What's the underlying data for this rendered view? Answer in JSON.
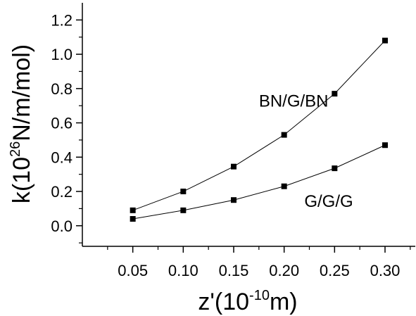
{
  "chart_data": {
    "type": "line",
    "x_ticks": [
      "0.05",
      "0.10",
      "0.15",
      "0.20",
      "0.25",
      "0.30"
    ],
    "y_ticks": [
      "0.0",
      "0.2",
      "0.4",
      "0.6",
      "0.8",
      "1.0",
      "1.2"
    ],
    "xlim": [
      0.0,
      0.33
    ],
    "ylim": [
      -0.12,
      1.3
    ],
    "xlabel": {
      "pre": "z'(10",
      "sup": "-10",
      "post": "m)"
    },
    "ylabel": {
      "pre": "k(10",
      "sup": "26",
      "post": "N/m/mol)"
    },
    "series": [
      {
        "name": "BN/G/BN",
        "x": [
          0.05,
          0.1,
          0.15,
          0.2,
          0.25,
          0.3
        ],
        "y": [
          0.09,
          0.2,
          0.345,
          0.53,
          0.77,
          1.08
        ],
        "label_pos": [
          0.175,
          0.695
        ]
      },
      {
        "name": "G/G/G",
        "x": [
          0.05,
          0.1,
          0.15,
          0.2,
          0.25,
          0.3
        ],
        "y": [
          0.04,
          0.09,
          0.15,
          0.23,
          0.335,
          0.47
        ],
        "label_pos": [
          0.22,
          0.11
        ]
      }
    ],
    "marker": "square",
    "grid": false
  }
}
